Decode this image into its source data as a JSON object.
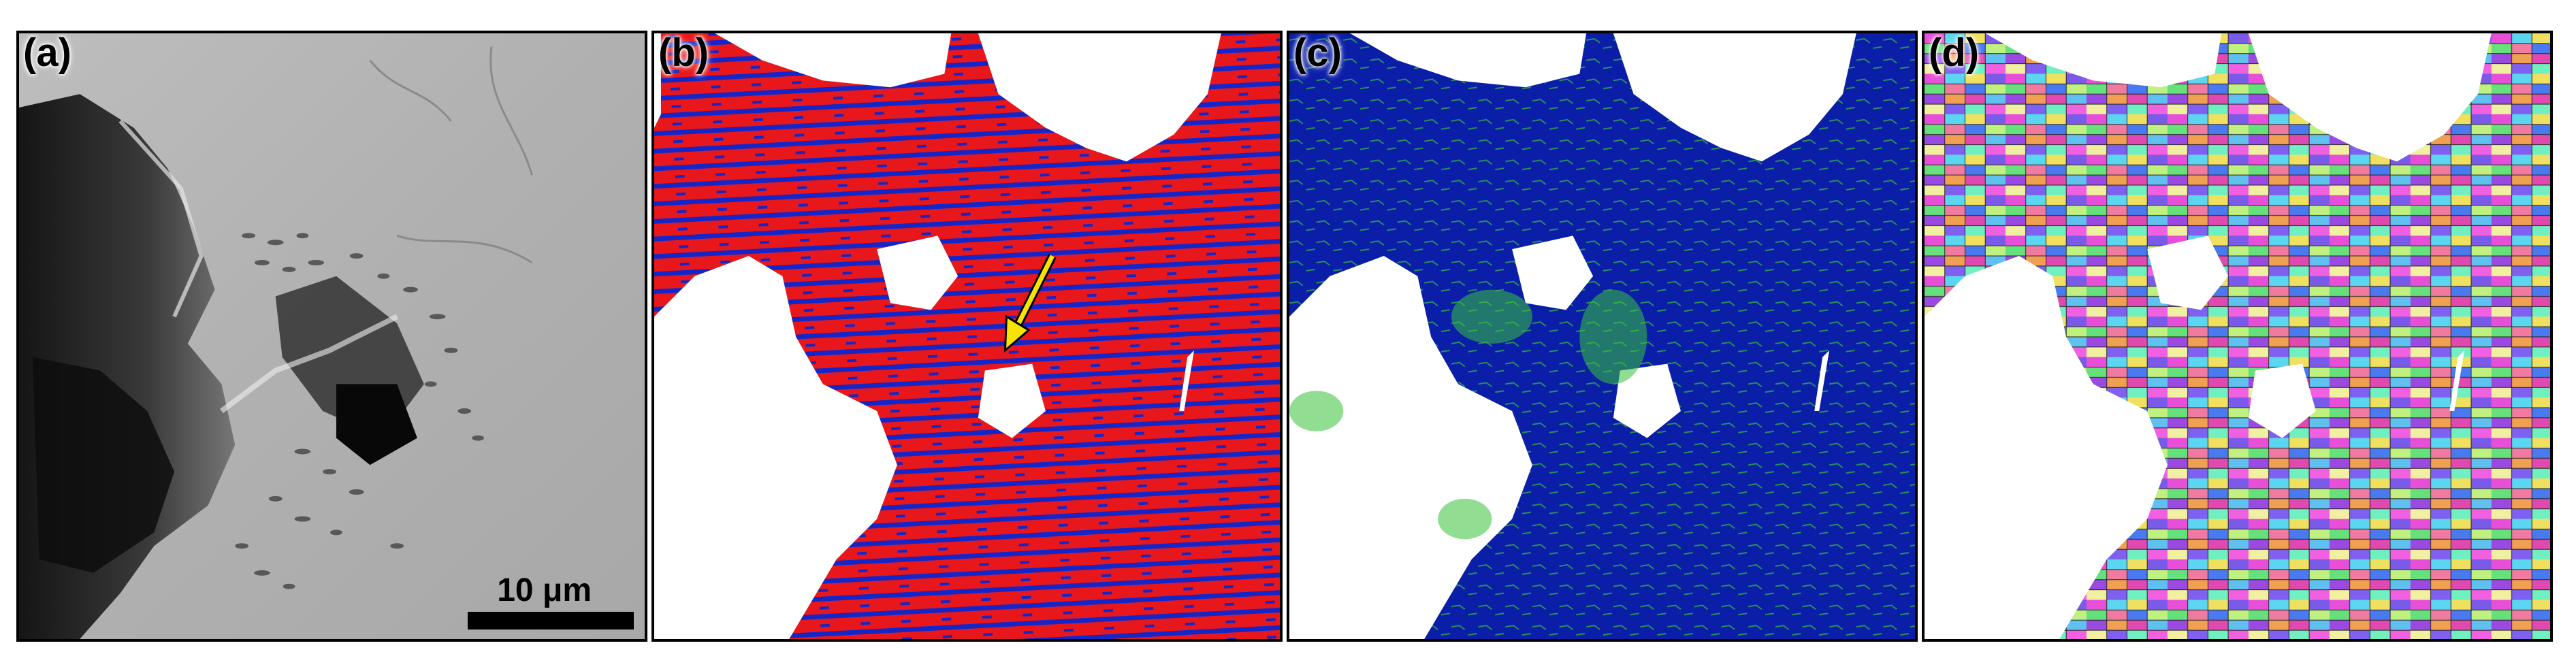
{
  "panels": [
    {
      "label": "(a)"
    },
    {
      "label": "(b)"
    },
    {
      "label": "(c)"
    },
    {
      "label": "(d)"
    }
  ],
  "scale_bar": {
    "text": "10 μm"
  },
  "colors": {
    "sem_background": "#b5b5b5",
    "phase_red": "#e8171b",
    "phase_blue": "#1526c8",
    "kam_blue": "#0b1ea8",
    "kam_green": "#37c23a",
    "arrow_yellow": "#f5e400",
    "void_white": "#ffffff"
  },
  "icons": {
    "arrow": "arrow-down-left-icon"
  }
}
